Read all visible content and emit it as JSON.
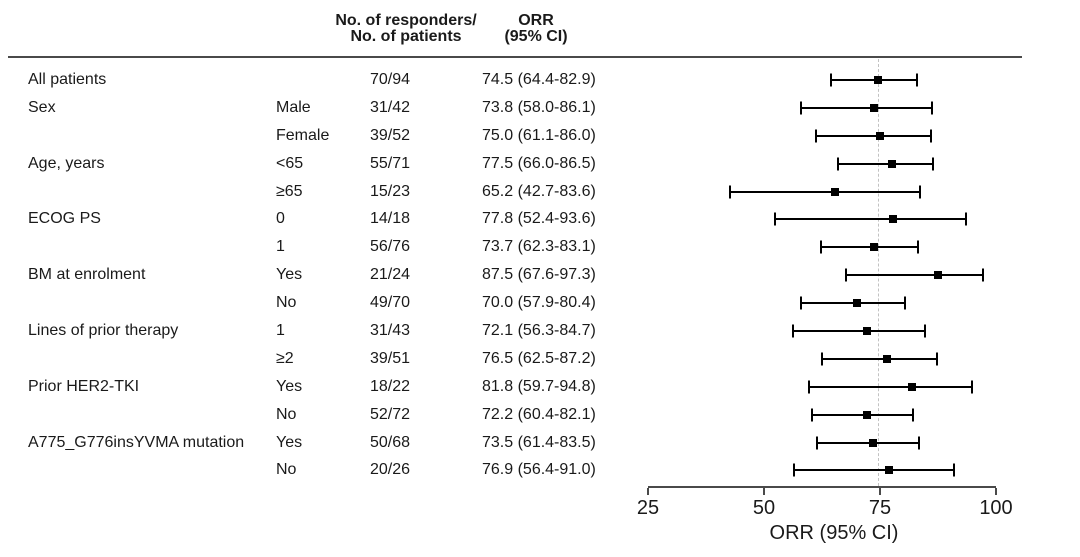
{
  "header": {
    "counts_col_line1": "No. of responders/",
    "counts_col_line2": "No. of patients",
    "orr_col_line1": "ORR",
    "orr_col_line2": "(95% CI)"
  },
  "chart_data": {
    "type": "forest",
    "xlabel": "ORR (95% CI)",
    "xlim": [
      25,
      100
    ],
    "xticks": [
      25,
      50,
      75,
      100
    ],
    "reference_line": 74.5,
    "marker": "filled-square",
    "grid": false,
    "rows": [
      {
        "group": "All patients",
        "level": "",
        "counts": "70/94",
        "orr": "74.5 (64.4-82.9)",
        "est": 74.5,
        "lo": 64.4,
        "hi": 82.9
      },
      {
        "group": "Sex",
        "level": "Male",
        "counts": "31/42",
        "orr": "73.8 (58.0-86.1)",
        "est": 73.8,
        "lo": 58.0,
        "hi": 86.1
      },
      {
        "group": "",
        "level": "Female",
        "counts": "39/52",
        "orr": "75.0 (61.1-86.0)",
        "est": 75.0,
        "lo": 61.1,
        "hi": 86.0
      },
      {
        "group": "Age, years",
        "level": "<65",
        "counts": "55/71",
        "orr": "77.5 (66.0-86.5)",
        "est": 77.5,
        "lo": 66.0,
        "hi": 86.5
      },
      {
        "group": "",
        "level": "≥65",
        "counts": "15/23",
        "orr": "65.2 (42.7-83.6)",
        "est": 65.2,
        "lo": 42.7,
        "hi": 83.6
      },
      {
        "group": "ECOG PS",
        "level": "0",
        "counts": "14/18",
        "orr": "77.8 (52.4-93.6)",
        "est": 77.8,
        "lo": 52.4,
        "hi": 93.6
      },
      {
        "group": "",
        "level": "1",
        "counts": "56/76",
        "orr": "73.7 (62.3-83.1)",
        "est": 73.7,
        "lo": 62.3,
        "hi": 83.1
      },
      {
        "group": "BM at enrolment",
        "level": "Yes",
        "counts": "21/24",
        "orr": "87.5 (67.6-97.3)",
        "est": 87.5,
        "lo": 67.6,
        "hi": 97.3
      },
      {
        "group": "",
        "level": "No",
        "counts": "49/70",
        "orr": "70.0 (57.9-80.4)",
        "est": 70.0,
        "lo": 57.9,
        "hi": 80.4
      },
      {
        "group": "Lines of prior therapy",
        "level": "1",
        "counts": "31/43",
        "orr": "72.1 (56.3-84.7)",
        "est": 72.1,
        "lo": 56.3,
        "hi": 84.7
      },
      {
        "group": "",
        "level": "≥2",
        "counts": "39/51",
        "orr": "76.5 (62.5-87.2)",
        "est": 76.5,
        "lo": 62.5,
        "hi": 87.2
      },
      {
        "group": "Prior HER2-TKI",
        "level": "Yes",
        "counts": "18/22",
        "orr": "81.8 (59.7-94.8)",
        "est": 81.8,
        "lo": 59.7,
        "hi": 94.8
      },
      {
        "group": "",
        "level": "No",
        "counts": "52/72",
        "orr": "72.2 (60.4-82.1)",
        "est": 72.2,
        "lo": 60.4,
        "hi": 82.1
      },
      {
        "group": "A775_G776insYVMA mutation",
        "level": "Yes",
        "counts": "50/68",
        "orr": "73.5 (61.4-83.5)",
        "est": 73.5,
        "lo": 61.4,
        "hi": 83.5
      },
      {
        "group": "",
        "level": "No",
        "counts": "20/26",
        "orr": "76.9 (56.4-91.0)",
        "est": 76.9,
        "lo": 56.4,
        "hi": 91.0
      }
    ]
  },
  "colors": {
    "marker": "#000000",
    "ci_line": "#000000",
    "axis": "#4a4a4a",
    "reference_dash": "#c2c2c2",
    "text": "#1a1a1a",
    "background": "#ffffff"
  }
}
